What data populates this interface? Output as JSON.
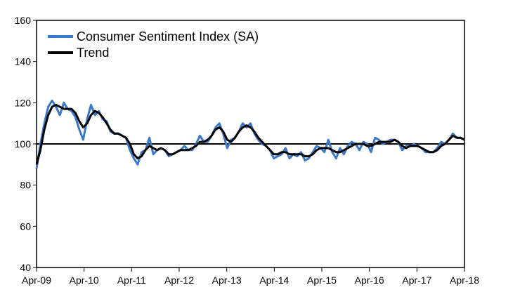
{
  "chart_data": {
    "type": "line",
    "title": "",
    "xlabel": "",
    "ylabel": "",
    "ylim": [
      40,
      160
    ],
    "y_ticks": [
      40,
      60,
      80,
      100,
      120,
      140,
      160
    ],
    "x_ticks": [
      "Apr-09",
      "Apr-10",
      "Apr-11",
      "Apr-12",
      "Apr-13",
      "Apr-14",
      "Apr-15",
      "Apr-16",
      "Apr-17",
      "Apr-18"
    ],
    "reference_line": 100,
    "grid": false,
    "legend_position": "top-left",
    "series": [
      {
        "name": "Consumer Sentiment Index (SA)",
        "color": "#3a78c8",
        "values": [
          88,
          100,
          110,
          118,
          121,
          118,
          114,
          120,
          117,
          116,
          113,
          107,
          102,
          112,
          119,
          114,
          116,
          112,
          111,
          106,
          105,
          105,
          104,
          103,
          97,
          93,
          90,
          96,
          97,
          103,
          95,
          97,
          98,
          97,
          94,
          95,
          96,
          97,
          99,
          97,
          97,
          100,
          104,
          101,
          101,
          104,
          108,
          110,
          105,
          98,
          102,
          103,
          106,
          110,
          108,
          110,
          105,
          102,
          100,
          99,
          97,
          93,
          94,
          95,
          98,
          93,
          95,
          94,
          96,
          92,
          93,
          96,
          99,
          98,
          96,
          102,
          96,
          93,
          98,
          95,
          99,
          101,
          100,
          97,
          101,
          100,
          96,
          103,
          102,
          100,
          101,
          102,
          102,
          101,
          97,
          99,
          99,
          100,
          99,
          98,
          96,
          96,
          96,
          98,
          101,
          100,
          102,
          105,
          103,
          103,
          102
        ]
      },
      {
        "name": "Trend",
        "color": "#000000",
        "values": [
          90,
          97,
          107,
          114,
          118,
          119,
          118,
          117,
          117,
          117,
          115,
          111,
          108,
          110,
          114,
          116,
          115,
          113,
          110,
          107,
          105,
          105,
          104,
          103,
          100,
          95,
          93,
          94,
          97,
          99,
          98,
          97,
          98,
          97,
          95,
          95,
          96,
          97,
          97,
          97,
          98,
          99,
          101,
          101,
          102,
          104,
          107,
          108,
          106,
          102,
          101,
          103,
          106,
          108,
          109,
          108,
          106,
          103,
          101,
          99,
          97,
          95,
          95,
          96,
          96,
          95,
          95,
          95,
          95,
          94,
          94,
          95,
          97,
          98,
          98,
          98,
          97,
          96,
          96,
          97,
          98,
          99,
          100,
          100,
          100,
          99,
          99,
          100,
          101,
          101,
          101,
          101,
          102,
          101,
          99,
          98,
          99,
          99,
          99,
          98,
          97,
          96,
          96,
          97,
          99,
          100,
          102,
          104,
          103,
          103,
          102
        ]
      }
    ]
  }
}
